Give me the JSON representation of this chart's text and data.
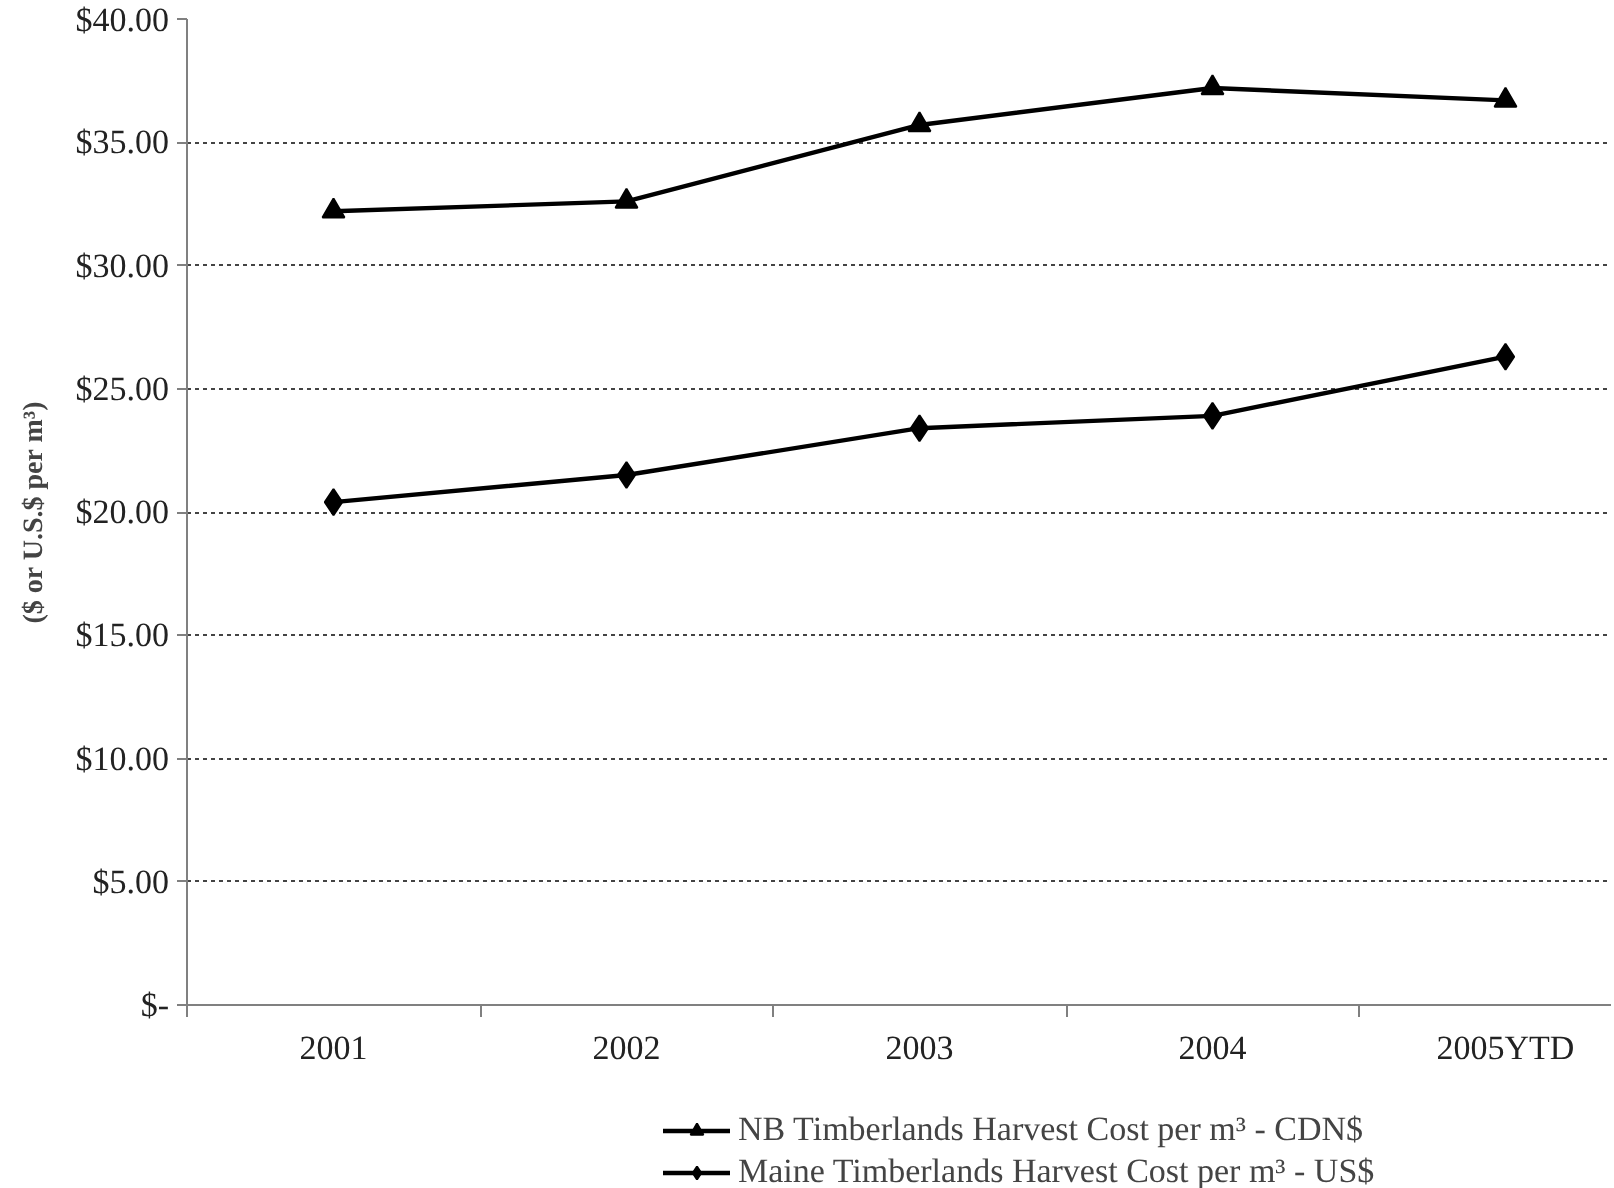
{
  "chart_data": {
    "type": "line",
    "ylabel": "($ or U.S.$ per m³)",
    "categories": [
      "2001",
      "2002",
      "2003",
      "2004",
      "2005YTD"
    ],
    "series": [
      {
        "name": "NB Timberlands Harvest Cost per m³ - CDN$",
        "color": "#000000",
        "marker": "triangle",
        "values": [
          32.2,
          32.6,
          35.7,
          37.2,
          36.7
        ]
      },
      {
        "name": "Maine Timberlands Harvest Cost per m³ - US$",
        "color": "#000000",
        "marker": "diamond",
        "values": [
          20.4,
          21.5,
          23.4,
          23.9,
          26.3
        ]
      }
    ],
    "ylim": [
      0,
      40
    ],
    "yticks": [
      {
        "value": 0,
        "label": "$-"
      },
      {
        "value": 5,
        "label": "$5.00"
      },
      {
        "value": 10,
        "label": "$10.00"
      },
      {
        "value": 15,
        "label": "$15.00"
      },
      {
        "value": 20,
        "label": "$20.00"
      },
      {
        "value": 25,
        "label": "$25.00"
      },
      {
        "value": 30,
        "label": "$30.00"
      },
      {
        "value": 35,
        "label": "$35.00"
      },
      {
        "value": 40,
        "label": "$40.00"
      }
    ],
    "grid": "y",
    "legend": "bottom",
    "line_style": "solid"
  }
}
